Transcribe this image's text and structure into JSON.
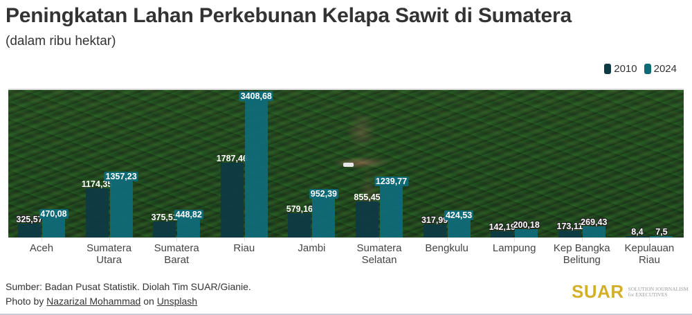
{
  "header": {
    "title": "Peningkatan Lahan Perkebunan Kelapa Sawit di Sumatera",
    "subtitle": "(dalam ribu hektar)"
  },
  "legend": [
    {
      "label": "2010",
      "color": "#0e3a45"
    },
    {
      "label": "2024",
      "color": "#0f6a78"
    }
  ],
  "chart_data": {
    "type": "bar",
    "title": "Peningkatan Lahan Perkebunan Kelapa Sawit di Sumatera",
    "subtitle": "(dalam ribu hektar)",
    "xlabel": "",
    "ylabel": "ribu hektar",
    "categories": [
      "Aceh",
      "Sumatera Utara",
      "Sumatera Barat",
      "Riau",
      "Jambi",
      "Sumatera Selatan",
      "Bengkulu",
      "Lampung",
      "Kep Bangka Belitung",
      "Kepulauan Riau"
    ],
    "category_lines": [
      [
        "Aceh"
      ],
      [
        "Sumatera",
        "Utara"
      ],
      [
        "Sumatera",
        "Barat"
      ],
      [
        "Riau"
      ],
      [
        "Jambi"
      ],
      [
        "Sumatera",
        "Selatan"
      ],
      [
        "Bengkulu"
      ],
      [
        "Lampung"
      ],
      [
        "Kep Bangka",
        "Belitung"
      ],
      [
        "Kepulauan",
        "Riau"
      ]
    ],
    "series": [
      {
        "name": "2010",
        "color": "#0e3a45",
        "values": [
          325.57,
          1174.35,
          375.51,
          1787.46,
          579.16,
          855.45,
          317.99,
          142.19,
          173.11,
          8.4
        ],
        "labels": [
          "325,57",
          "1174,35",
          "375,51",
          "1787,46",
          "579,16",
          "855,45",
          "317,99",
          "142,19",
          "173,11",
          "8,4"
        ]
      },
      {
        "name": "2024",
        "color": "#0f6a78",
        "values": [
          470.08,
          1357.23,
          448.82,
          3408.68,
          952.39,
          1239.77,
          424.53,
          200.18,
          269.43,
          7.5
        ],
        "labels": [
          "470,08",
          "1357,23",
          "448,82",
          "3408,68",
          "952,39",
          "1239,77",
          "424,53",
          "200,18",
          "269,43",
          "7,5"
        ]
      }
    ],
    "ylim": [
      0,
      3500
    ],
    "grid": false,
    "legend_position": "top-right",
    "background": "aerial photo of palm oil plantation"
  },
  "footer": {
    "source": "Sumber: Badan Pusat Statistik. Diolah Tim SUAR/Gianie.",
    "photo_prefix": "Photo by ",
    "photo_author": "Nazarizal Mohammad",
    "photo_mid": " on ",
    "photo_site": "Unsplash"
  },
  "logo": {
    "brand": "SUAR",
    "tag_line1": "SOLUTION JOURNALISM",
    "tag_line2": "for EXECUTIVES",
    "color": "#d4b02a"
  }
}
